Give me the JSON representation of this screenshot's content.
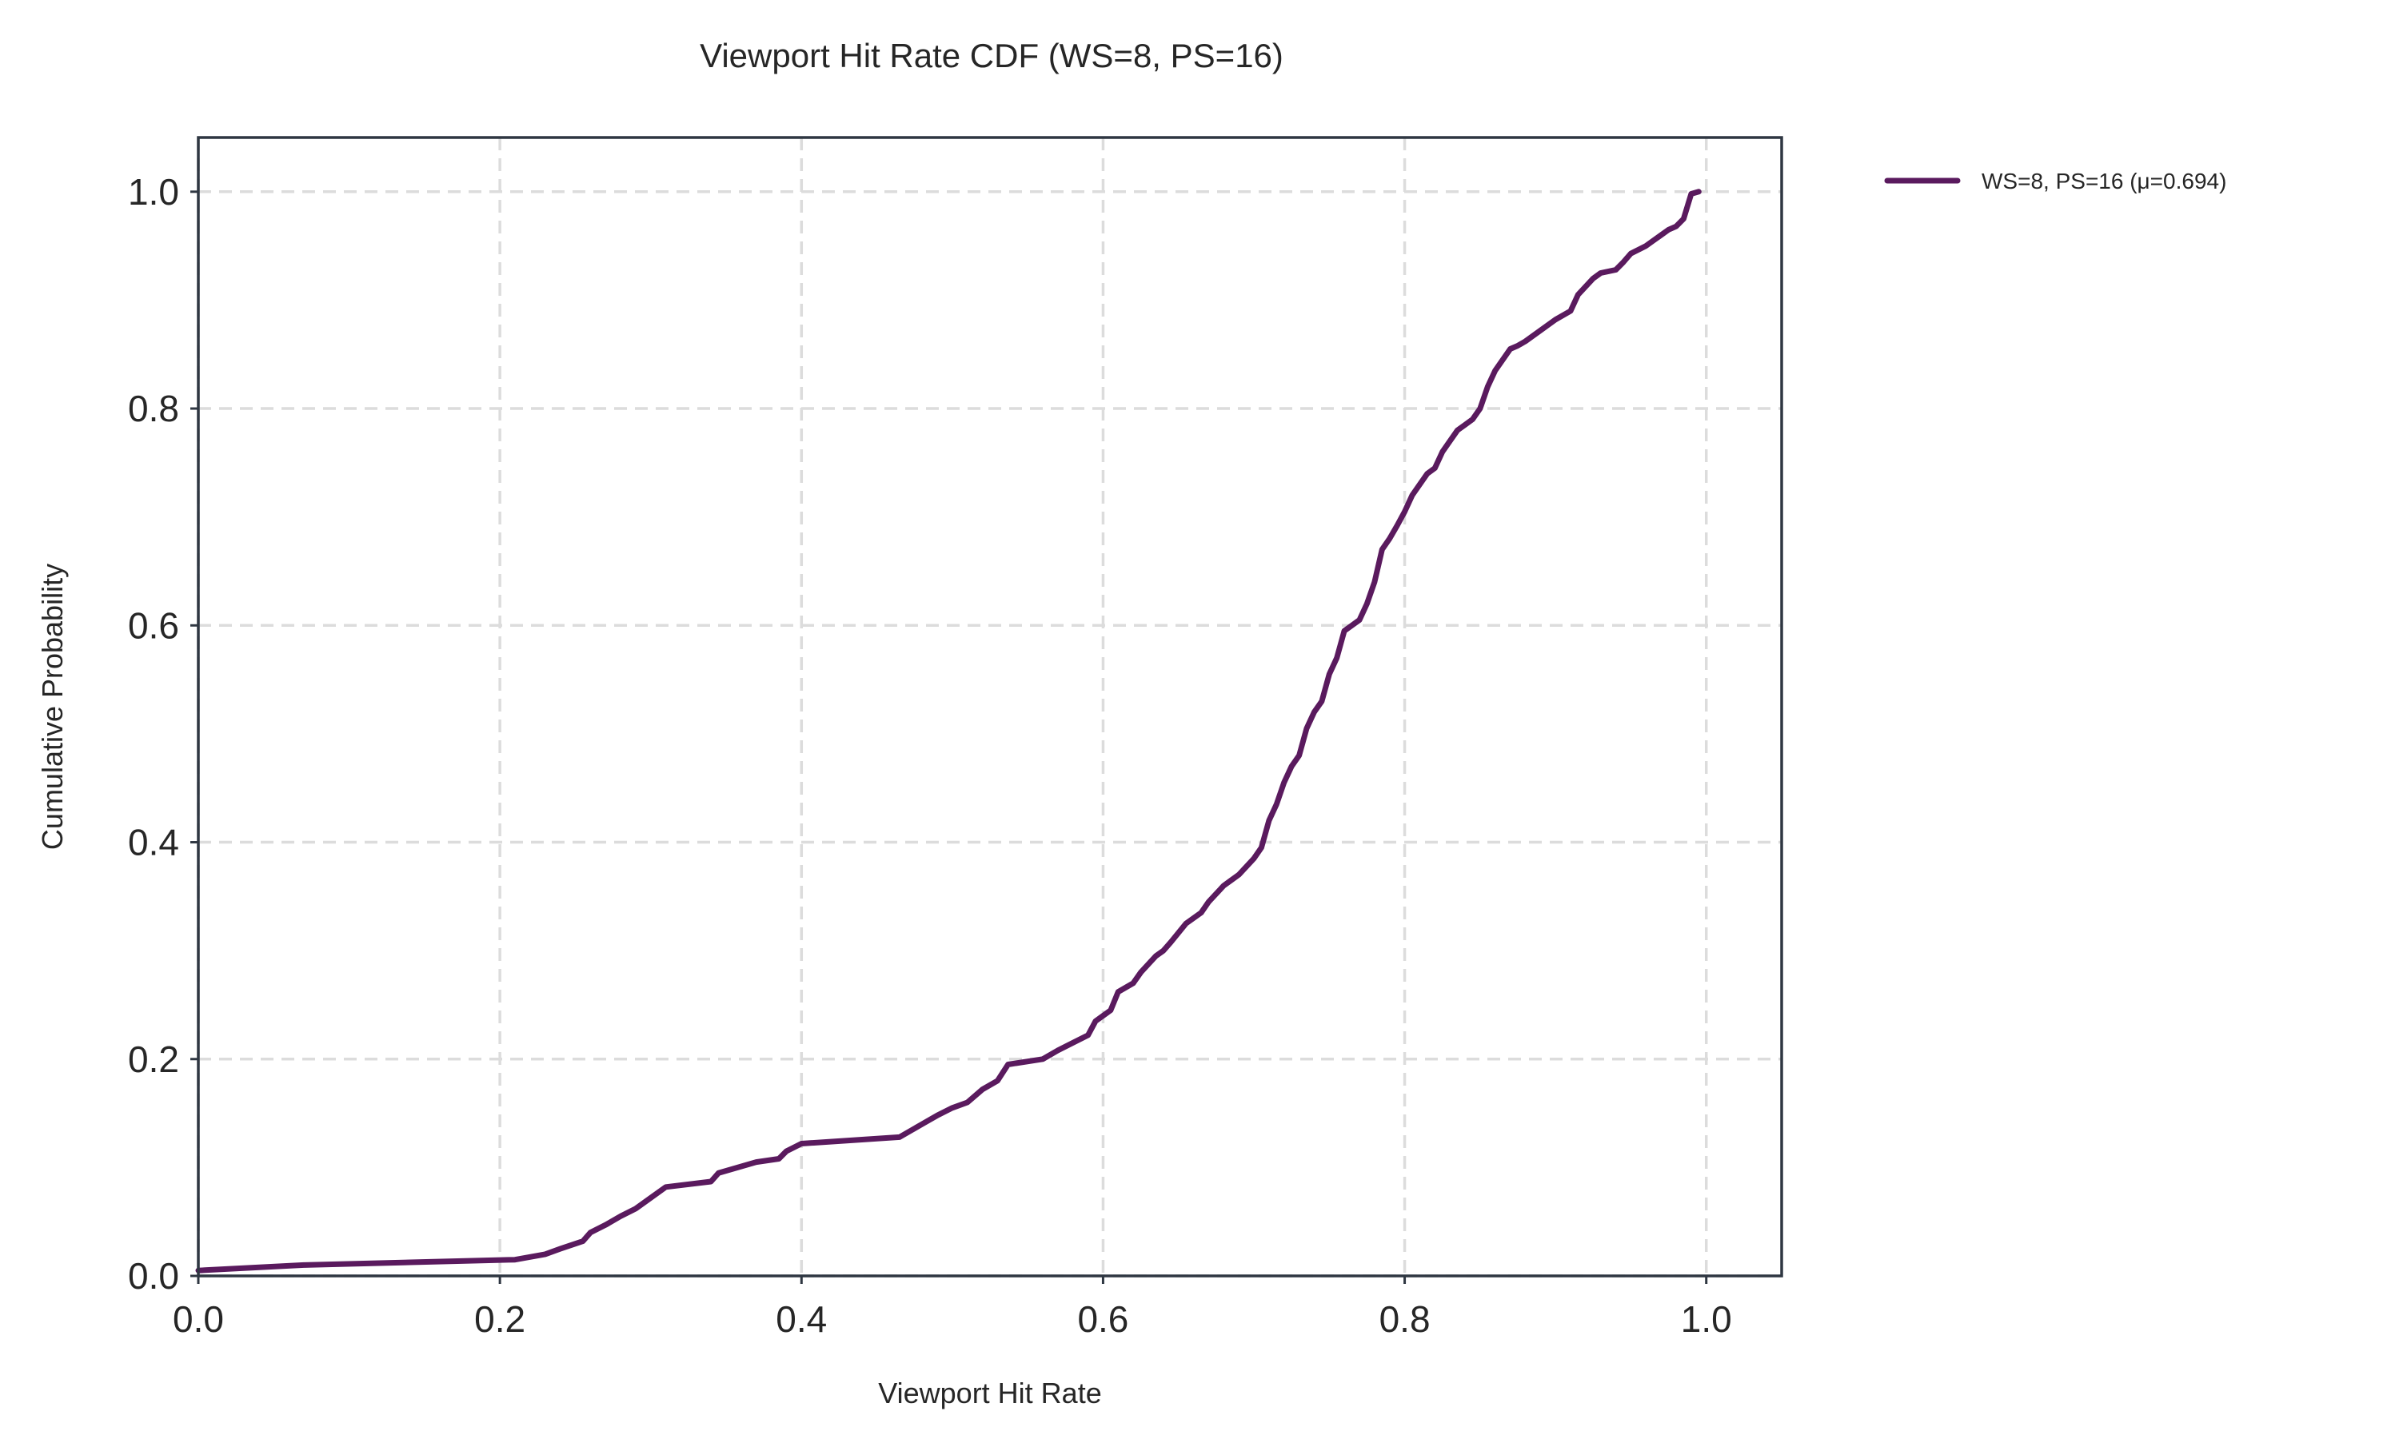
{
  "chart_data": {
    "type": "line",
    "title": "Viewport Hit Rate CDF (WS=8, PS=16)",
    "xlabel": "Viewport Hit Rate",
    "ylabel": "Cumulative Probability",
    "xlim": [
      0.0,
      1.05
    ],
    "ylim": [
      0.0,
      1.05
    ],
    "xticks": [
      0.0,
      0.2,
      0.4,
      0.6,
      0.8,
      1.0
    ],
    "xtick_labels": [
      "0.0",
      "0.2",
      "0.4",
      "0.6",
      "0.8",
      "1.0"
    ],
    "yticks": [
      0.0,
      0.2,
      0.4,
      0.6,
      0.8,
      1.0
    ],
    "ytick_labels": [
      "0.0",
      "0.2",
      "0.4",
      "0.6",
      "0.8",
      "1.0"
    ],
    "grid": true,
    "legend_position": "outside-top-right",
    "series": [
      {
        "name": "WS=8, PS=16 (μ=0.694)",
        "color": "#5a1a5e",
        "x": [
          0.0,
          0.07,
          0.21,
          0.23,
          0.24,
          0.255,
          0.26,
          0.27,
          0.28,
          0.29,
          0.3,
          0.31,
          0.34,
          0.345,
          0.37,
          0.385,
          0.39,
          0.4,
          0.465,
          0.48,
          0.49,
          0.5,
          0.51,
          0.52,
          0.53,
          0.537,
          0.56,
          0.57,
          0.58,
          0.59,
          0.595,
          0.605,
          0.61,
          0.62,
          0.625,
          0.635,
          0.64,
          0.645,
          0.655,
          0.665,
          0.67,
          0.68,
          0.685,
          0.69,
          0.7,
          0.705,
          0.71,
          0.715,
          0.72,
          0.725,
          0.73,
          0.735,
          0.74,
          0.745,
          0.75,
          0.755,
          0.76,
          0.765,
          0.77,
          0.775,
          0.78,
          0.785,
          0.79,
          0.795,
          0.8,
          0.805,
          0.81,
          0.815,
          0.82,
          0.825,
          0.83,
          0.835,
          0.84,
          0.845,
          0.85,
          0.855,
          0.86,
          0.87,
          0.875,
          0.88,
          0.89,
          0.9,
          0.91,
          0.915,
          0.925,
          0.93,
          0.94,
          0.945,
          0.95,
          0.96,
          0.965,
          0.97,
          0.975,
          0.98,
          0.985,
          0.99,
          0.995
        ],
        "y": [
          0.005,
          0.01,
          0.015,
          0.02,
          0.025,
          0.032,
          0.04,
          0.047,
          0.055,
          0.062,
          0.072,
          0.082,
          0.087,
          0.095,
          0.105,
          0.108,
          0.115,
          0.122,
          0.128,
          0.14,
          0.148,
          0.155,
          0.16,
          0.172,
          0.18,
          0.195,
          0.2,
          0.208,
          0.215,
          0.222,
          0.235,
          0.245,
          0.262,
          0.27,
          0.28,
          0.295,
          0.3,
          0.308,
          0.325,
          0.335,
          0.345,
          0.36,
          0.365,
          0.37,
          0.385,
          0.395,
          0.42,
          0.435,
          0.455,
          0.47,
          0.48,
          0.505,
          0.52,
          0.53,
          0.555,
          0.57,
          0.595,
          0.6,
          0.605,
          0.62,
          0.64,
          0.67,
          0.68,
          0.692,
          0.705,
          0.72,
          0.73,
          0.74,
          0.745,
          0.76,
          0.77,
          0.78,
          0.785,
          0.79,
          0.8,
          0.82,
          0.835,
          0.855,
          0.858,
          0.862,
          0.872,
          0.882,
          0.89,
          0.905,
          0.92,
          0.925,
          0.928,
          0.935,
          0.943,
          0.95,
          0.955,
          0.96,
          0.965,
          0.968,
          0.975,
          0.998,
          1.0
        ]
      }
    ]
  }
}
